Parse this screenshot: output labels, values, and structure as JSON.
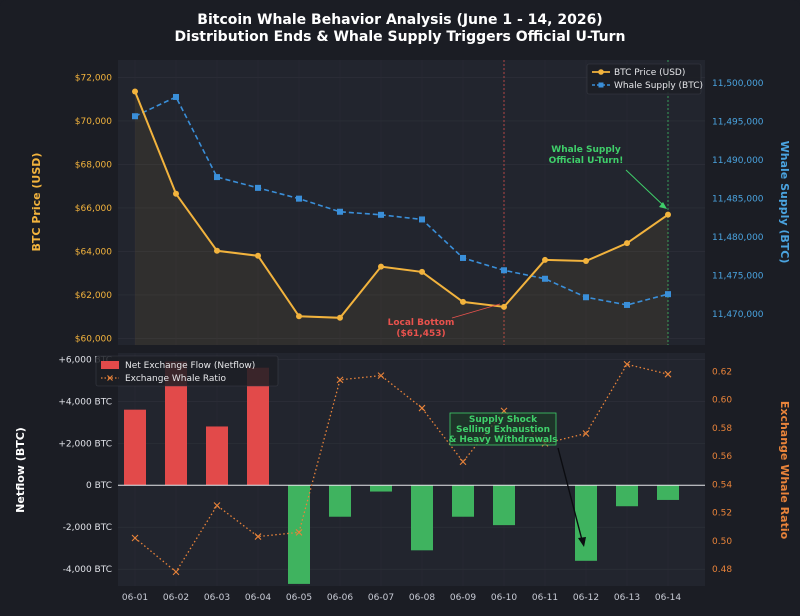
{
  "title_line1": "Bitcoin Whale Behavior Analysis (June 1 - 14, 2026)",
  "title_line2": "Distribution Ends & Whale Supply Triggers Official U-Turn",
  "chart_data": [
    {
      "type": "line",
      "panel": "top",
      "categories": [
        "06-01",
        "06-02",
        "06-03",
        "06-04",
        "06-05",
        "06-06",
        "06-07",
        "06-08",
        "06-09",
        "06-10",
        "06-11",
        "06-12",
        "06-13",
        "06-14"
      ],
      "series": [
        {
          "name": "BTC Price (USD)",
          "axis": "left",
          "color": "#f2b33d",
          "marker": "circle",
          "style": "solid",
          "values": [
            71350,
            66650,
            64030,
            63800,
            61020,
            60950,
            63300,
            63060,
            61680,
            61453,
            63610,
            63560,
            64380,
            65690
          ]
        },
        {
          "name": "Whale Supply (BTC)",
          "axis": "right",
          "color": "#3a8fd9",
          "marker": "square",
          "style": "dashed",
          "values": [
            11495700,
            11498200,
            11487800,
            11486400,
            11485000,
            11483300,
            11482900,
            11482300,
            11477300,
            11475700,
            11474600,
            11472200,
            11471200,
            11472600
          ]
        }
      ],
      "ylabel_left": "BTC Price (USD)",
      "ylabel_right": "Whale Supply (BTC)",
      "ylim_left": [
        59700,
        72800
      ],
      "ylim_right": [
        11466000,
        11503000
      ],
      "yticks_left": [
        "$60,000",
        "$62,000",
        "$64,000",
        "$66,000",
        "$68,000",
        "$70,000",
        "$72,000"
      ],
      "yticks_left_values": [
        60000,
        62000,
        64000,
        66000,
        68000,
        70000,
        72000
      ],
      "yticks_right": [
        "11,470,000",
        "11,475,000",
        "11,480,000",
        "11,485,000",
        "11,490,000",
        "11,495,000",
        "11,500,000"
      ],
      "yticks_right_values": [
        11470000,
        11475000,
        11480000,
        11485000,
        11490000,
        11495000,
        11500000
      ],
      "legend": "top-right",
      "grid": true,
      "annotations": {
        "uturn_line1": "Whale Supply",
        "uturn_line2": "Official U-Turn!",
        "bottom_line1": "Local Bottom",
        "bottom_line2": "($61,453)"
      },
      "vlines": [
        "06-10",
        "06-14"
      ]
    },
    {
      "type": "bar",
      "panel": "bottom",
      "categories": [
        "06-01",
        "06-02",
        "06-03",
        "06-04",
        "06-05",
        "06-06",
        "06-07",
        "06-08",
        "06-09",
        "06-10",
        "06-11",
        "06-12",
        "06-13",
        "06-14"
      ],
      "series": [
        {
          "name": "Net Exchange Flow (Netflow)",
          "axis": "left",
          "type": "bar",
          "color_positive": "#e24a4a",
          "color_negative": "#3fb35f",
          "values": [
            3600,
            5900,
            2800,
            5600,
            -4700,
            -1500,
            -300,
            -3100,
            -1500,
            -1900,
            0,
            -3600,
            -1000,
            -700
          ]
        },
        {
          "name": "Exchange Whale Ratio",
          "axis": "right",
          "type": "line",
          "color": "#e8833a",
          "marker": "x",
          "style": "dotted",
          "values": [
            0.502,
            0.478,
            0.525,
            0.503,
            0.506,
            0.614,
            0.617,
            0.594,
            0.556,
            0.592,
            0.569,
            0.576,
            0.625,
            0.618
          ]
        }
      ],
      "ylabel_left": "Netflow (BTC)",
      "ylabel_right": "Exchange Whale Ratio",
      "ylim_left": [
        -4800,
        6300
      ],
      "ylim_right": [
        0.468,
        0.633
      ],
      "yticks_left": [
        "-4,000 BTC",
        "-2,000 BTC",
        "0 BTC",
        "+2,000 BTC",
        "+4,000 BTC",
        "+6,000 BTC"
      ],
      "yticks_left_values": [
        -4000,
        -2000,
        0,
        2000,
        4000,
        6000
      ],
      "yticks_right": [
        "0.48",
        "0.50",
        "0.52",
        "0.54",
        "0.56",
        "0.58",
        "0.60",
        "0.62"
      ],
      "yticks_right_values": [
        0.48,
        0.5,
        0.52,
        0.54,
        0.56,
        0.58,
        0.6,
        0.62
      ],
      "legend": "top-left",
      "grid": true,
      "annotations": {
        "shock_line1": "Supply Shock",
        "shock_line2": "Selling Exhaustion",
        "shock_line3": "& Heavy Withdrawals"
      }
    }
  ]
}
